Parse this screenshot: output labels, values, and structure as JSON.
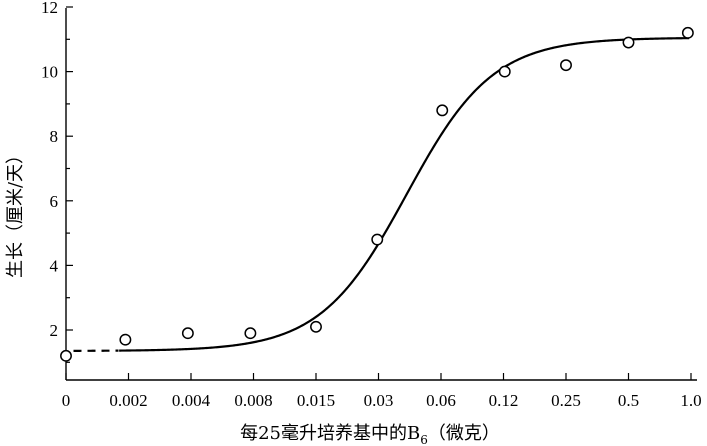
{
  "chart_data": {
    "type": "scatter",
    "title": "",
    "xlabel": "每25毫升培养基中的B",
    "xlabel_subscript": "6",
    "xlabel_suffix": "（微克）",
    "ylabel": "生长（厘米/天）",
    "x_ticks": [
      "0",
      "0.002",
      "0.004",
      "0.008",
      "0.015",
      "0.03",
      "0.06",
      "0.12",
      "0.25",
      "0.5",
      "1.0"
    ],
    "y_ticks": [
      "2",
      "4",
      "6",
      "8",
      "10",
      "12"
    ],
    "ylim": [
      1,
      12
    ],
    "grid": false,
    "legend": "none",
    "series": [
      {
        "values": [
          {
            "x": "0",
            "y": 1.2
          },
          {
            "x": "0.002",
            "y": 1.7
          },
          {
            "x": "0.004",
            "y": 1.9
          },
          {
            "x": "0.008",
            "y": 1.9
          },
          {
            "x": "0.015",
            "y": 2.1
          },
          {
            "x": "0.03",
            "y": 4.8
          },
          {
            "x": "0.06",
            "y": 8.8
          },
          {
            "x": "0.12",
            "y": 10.0
          },
          {
            "x": "0.25",
            "y": 10.2
          },
          {
            "x": "0.5",
            "y": 10.9
          },
          {
            "x": "1.0",
            "y": 11.2
          }
        ]
      }
    ],
    "fit_curve": {
      "style": "sigmoid",
      "dashed_until_x": "0.002",
      "y_low": 1.35,
      "y_high": 11.05
    }
  }
}
